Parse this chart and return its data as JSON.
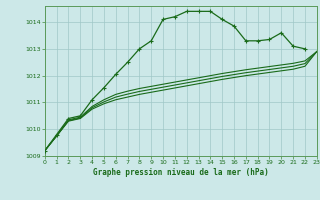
{
  "title": "Graphe pression niveau de la mer (hPa)",
  "bg_color": "#cce8e8",
  "grid_color": "#a0c8c8",
  "line_color": "#1a6b1a",
  "spine_color": "#5a9a5a",
  "xlim": [
    0,
    23
  ],
  "ylim": [
    1009,
    1014.6
  ],
  "yticks": [
    1009,
    1010,
    1011,
    1012,
    1013,
    1014
  ],
  "xticks": [
    0,
    1,
    2,
    3,
    4,
    5,
    6,
    7,
    8,
    9,
    10,
    11,
    12,
    13,
    14,
    15,
    16,
    17,
    18,
    19,
    20,
    21,
    22,
    23
  ],
  "series1_x": [
    0,
    1,
    2,
    3,
    4,
    5,
    6,
    7,
    8,
    9,
    10,
    11,
    12,
    13,
    14,
    15,
    16,
    17,
    18,
    19,
    20,
    21,
    22
  ],
  "series1_y": [
    1009.2,
    1009.8,
    1010.4,
    1010.5,
    1011.1,
    1011.55,
    1012.05,
    1012.5,
    1013.0,
    1013.3,
    1014.1,
    1014.2,
    1014.4,
    1014.4,
    1014.4,
    1014.1,
    1013.85,
    1013.3,
    1013.3,
    1013.35,
    1013.6,
    1013.1,
    1013.0
  ],
  "series2_x": [
    0,
    1,
    2,
    3,
    4,
    5,
    6,
    7,
    8,
    9,
    10,
    11,
    12,
    13,
    14,
    15,
    16,
    17,
    18,
    19,
    20,
    21,
    22,
    23
  ],
  "series2_y": [
    1009.2,
    1009.75,
    1010.35,
    1010.45,
    1010.85,
    1011.1,
    1011.3,
    1011.42,
    1011.52,
    1011.6,
    1011.68,
    1011.76,
    1011.84,
    1011.92,
    1012.0,
    1012.08,
    1012.15,
    1012.22,
    1012.28,
    1012.34,
    1012.4,
    1012.46,
    1012.55,
    1012.9
  ],
  "series3_x": [
    0,
    1,
    2,
    3,
    4,
    5,
    6,
    7,
    8,
    9,
    10,
    11,
    12,
    13,
    14,
    15,
    16,
    17,
    18,
    19,
    20,
    21,
    22,
    23
  ],
  "series3_y": [
    1009.2,
    1009.75,
    1010.3,
    1010.4,
    1010.75,
    1010.95,
    1011.1,
    1011.2,
    1011.3,
    1011.38,
    1011.46,
    1011.54,
    1011.62,
    1011.7,
    1011.78,
    1011.86,
    1011.93,
    1012.0,
    1012.06,
    1012.12,
    1012.18,
    1012.24,
    1012.35,
    1012.9
  ],
  "series4_x": [
    0,
    1,
    2,
    3,
    4,
    5,
    6,
    7,
    8,
    9,
    10,
    11,
    12,
    13,
    14,
    15,
    16,
    17,
    18,
    19,
    20,
    21,
    22,
    23
  ],
  "series4_y": [
    1009.2,
    1009.75,
    1010.32,
    1010.42,
    1010.8,
    1011.02,
    1011.2,
    1011.31,
    1011.41,
    1011.49,
    1011.57,
    1011.65,
    1011.73,
    1011.81,
    1011.89,
    1011.97,
    1012.04,
    1012.11,
    1012.17,
    1012.23,
    1012.29,
    1012.35,
    1012.45,
    1012.9
  ]
}
